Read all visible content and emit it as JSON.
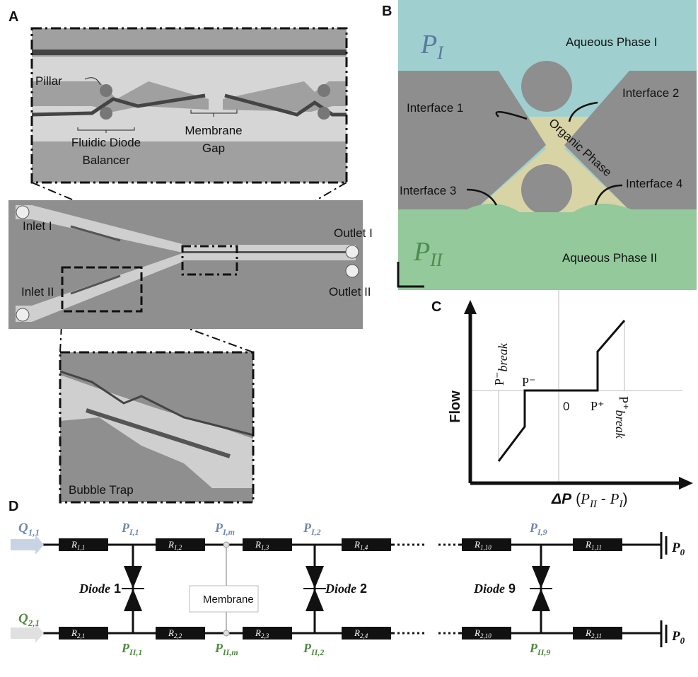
{
  "panels": {
    "a": {
      "letter": "A",
      "pillar": "Pillar",
      "diode_balancer": [
        "Fluidic Diode",
        "Balancer"
      ],
      "membrane_gap": [
        "Membrane",
        "Gap"
      ],
      "inlets": [
        "Inlet I",
        "Inlet II"
      ],
      "outlets": [
        "Outlet I",
        "Outlet II"
      ],
      "bubble_trap": "Bubble Trap"
    },
    "b": {
      "letter": "B",
      "p_top": {
        "symbol": "P",
        "sub": "I"
      },
      "phase_top": "Aqueous Phase I",
      "interfaces": [
        "Interface 1",
        "Interface 2",
        "Interface 3",
        "Interface 4"
      ],
      "organic": "Organic Phase",
      "p_bottom": {
        "symbol": "P",
        "sub": "II"
      },
      "phase_bottom": "Aqueous Phase II"
    },
    "c": {
      "letter": "C",
      "y_label": "Flow",
      "x_label": {
        "delta_p": "ΔP",
        "open": "(",
        "p1": "P",
        "sub1": "II",
        "minus": " - ",
        "p2": "P",
        "sub2": "I",
        "close": ")"
      },
      "p_minus_break": {
        "symbol": "P⁻",
        "sub": "break"
      },
      "p_minus": "P⁻",
      "zero": "0",
      "p_plus": "P⁺",
      "p_plus_break": {
        "symbol": "P⁺",
        "sub": "break"
      }
    },
    "d": {
      "letter": "D",
      "q_top": {
        "symbol": "Q",
        "sub": "1,1"
      },
      "q_bottom": {
        "symbol": "Q",
        "sub": "2,1"
      },
      "r_top": [
        {
          "symbol": "R",
          "sub": "1,1"
        },
        {
          "symbol": "R",
          "sub": "1,2"
        },
        {
          "symbol": "R",
          "sub": "1,3"
        },
        {
          "symbol": "R",
          "sub": "1,4"
        },
        {
          "symbol": "R",
          "sub": "1,10"
        },
        {
          "symbol": "R",
          "sub": "1,11"
        }
      ],
      "r_bottom": [
        {
          "symbol": "R",
          "sub": "2,1"
        },
        {
          "symbol": "R",
          "sub": "2,2"
        },
        {
          "symbol": "R",
          "sub": "2,3"
        },
        {
          "symbol": "R",
          "sub": "2,4"
        },
        {
          "symbol": "R",
          "sub": "2,10"
        },
        {
          "symbol": "R",
          "sub": "2,11"
        }
      ],
      "nodes_top": [
        {
          "symbol": "P",
          "sub": "I,1"
        },
        {
          "symbol": "P",
          "sub": "I,m"
        },
        {
          "symbol": "P",
          "sub": "I,2"
        },
        {
          "symbol": "P",
          "sub": "I,9"
        }
      ],
      "nodes_bottom": [
        {
          "symbol": "P",
          "sub": "II,1"
        },
        {
          "symbol": "P",
          "sub": "II,m"
        },
        {
          "symbol": "P",
          "sub": "II,2"
        },
        {
          "symbol": "P",
          "sub": "II,9"
        }
      ],
      "diodes": [
        {
          "word": "Diode",
          "num": "1"
        },
        {
          "word": "Diode",
          "num": "2"
        },
        {
          "word": "Diode",
          "num": "9"
        }
      ],
      "membrane": "Membrane",
      "ground": [
        {
          "symbol": "P",
          "sub": "0"
        },
        {
          "symbol": "P",
          "sub": "0"
        }
      ]
    }
  }
}
